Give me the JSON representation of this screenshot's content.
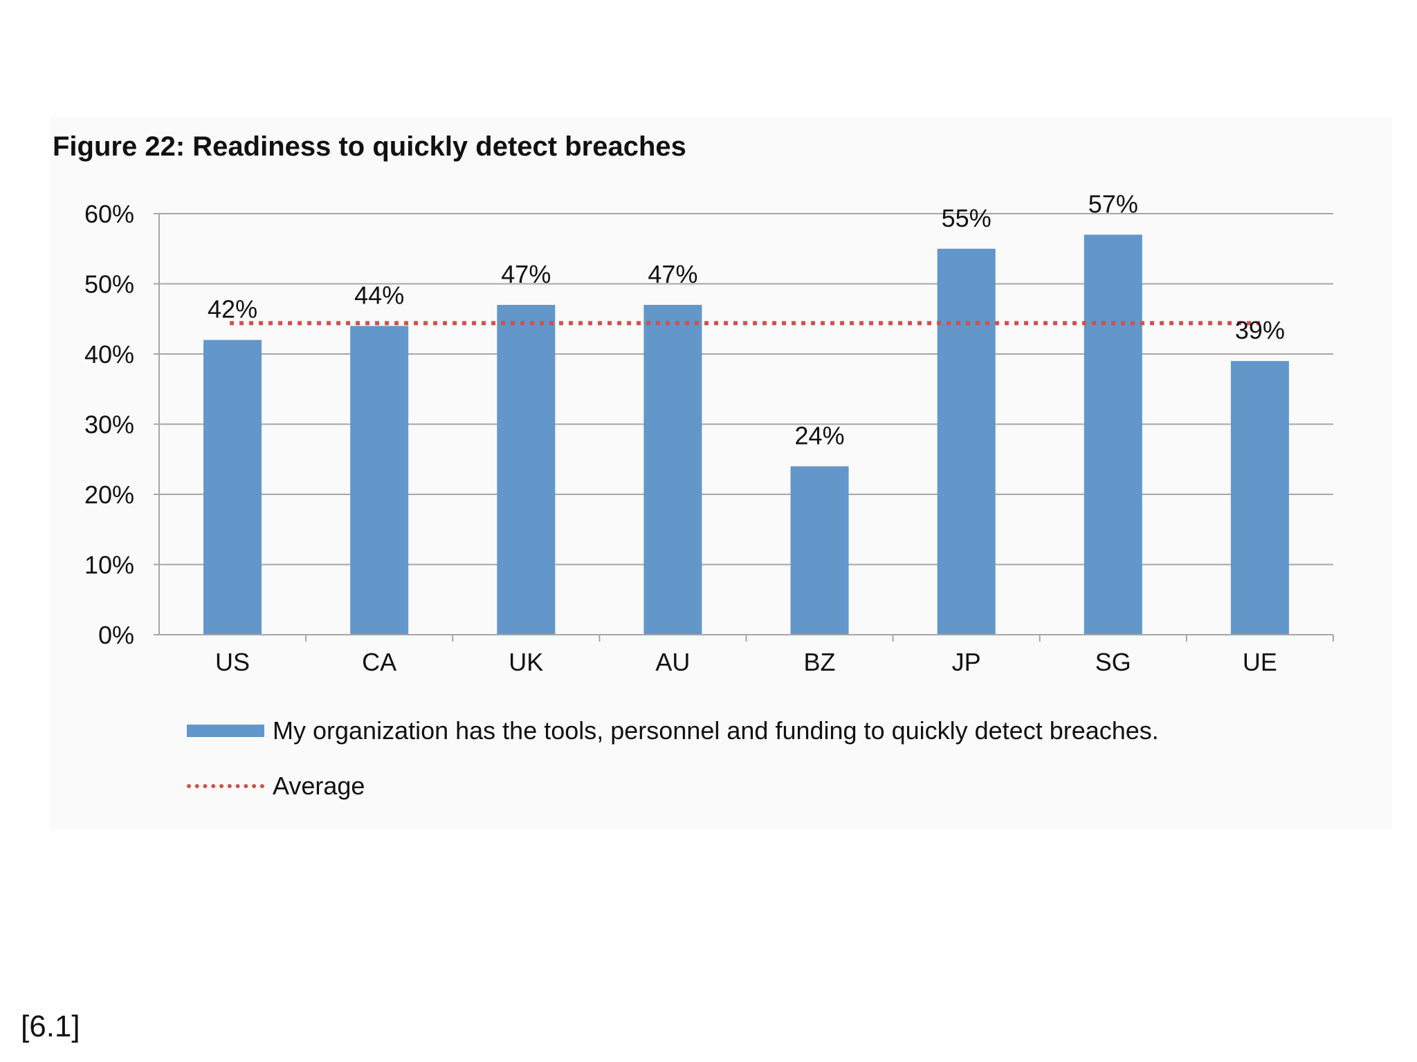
{
  "title": "Figure 22: Readiness to quickly detect breaches",
  "footnote": "[6.1]",
  "legend": {
    "bar_label": "My organization has the tools, personnel and funding to quickly detect breaches.",
    "avg_label": "Average"
  },
  "colors": {
    "bar": "#6396c9",
    "average": "#d0504f",
    "grid": "#a6a6a6"
  },
  "chart_data": {
    "type": "bar",
    "title": "Figure 22: Readiness to quickly detect breaches",
    "categories": [
      "US",
      "CA",
      "UK",
      "AU",
      "BZ",
      "JP",
      "SG",
      "UE"
    ],
    "series": [
      {
        "name": "My organization has the tools, personnel and funding to quickly detect breaches.",
        "values": [
          42,
          44,
          47,
          47,
          24,
          55,
          57,
          39
        ],
        "labels": [
          "42%",
          "44%",
          "47%",
          "47%",
          "24%",
          "55%",
          "57%",
          "39%"
        ]
      }
    ],
    "average": {
      "name": "Average",
      "value": 44.4
    },
    "ylim": [
      0,
      60
    ],
    "yticks": [
      0,
      10,
      20,
      30,
      40,
      50,
      60
    ],
    "ytick_labels": [
      "0%",
      "10%",
      "20%",
      "30%",
      "40%",
      "50%",
      "60%"
    ],
    "grid": true,
    "legend_position": "bottom"
  }
}
